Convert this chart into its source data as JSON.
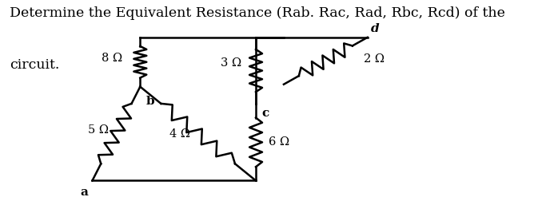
{
  "title_line1": "Determine the Equivalent Resistance (Rab. Rac, Rad, Rbc, Rcd) of the",
  "title_line2": "circuit.",
  "title_fontsize": 12.5,
  "bg_color": "#ffffff",
  "lw": 1.8,
  "R8_label": "8 Ω",
  "R5_label": "5 Ω",
  "R3_label": "3 Ω",
  "R4_label": "4 Ω",
  "R2_label": "2 Ω",
  "R6_label": "6 Ω"
}
